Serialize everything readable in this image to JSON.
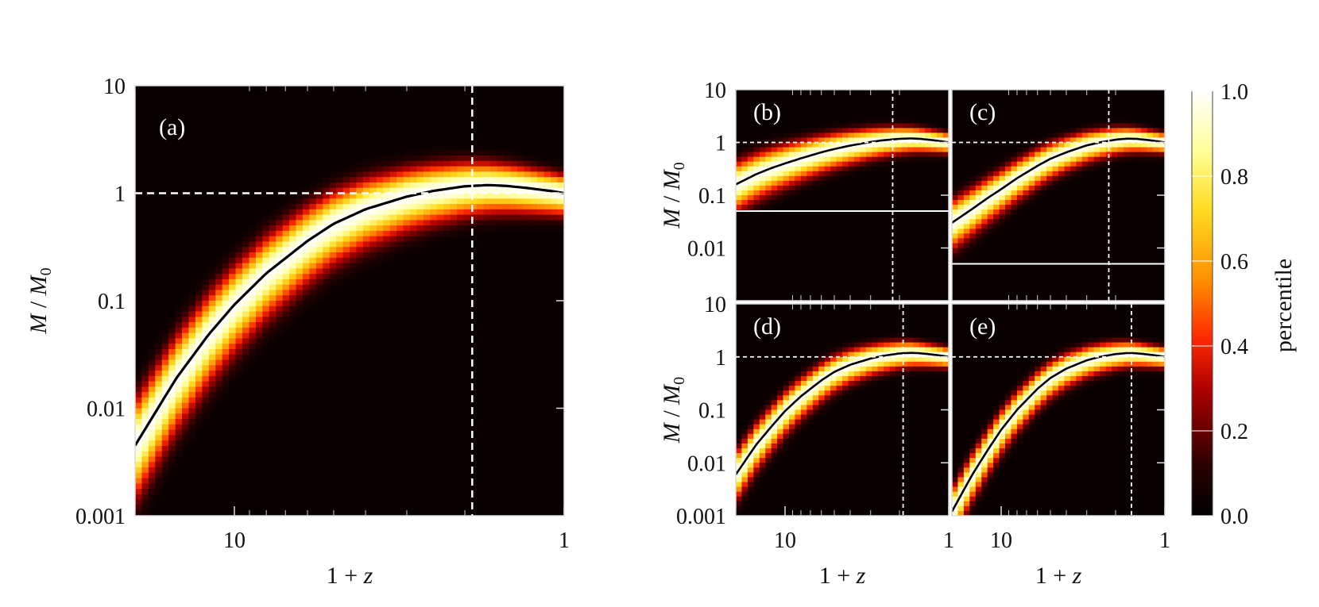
{
  "figure": {
    "colorbar": {
      "label": "percentile",
      "range": [
        0.0,
        1.0
      ],
      "ticks": [
        "0.0",
        "0.2",
        "0.4",
        "0.6",
        "0.8",
        "1.0"
      ],
      "colormap": [
        "#000000",
        "#3a0000",
        "#8b0000",
        "#e00000",
        "#ff6a00",
        "#ffd000",
        "#ffffa0",
        "#ffffff"
      ]
    },
    "axis_text": {
      "xlabel_prefix": "1 + ",
      "xlabel_var": "z",
      "ylabel_var": "M",
      "ylabel_sep": " / ",
      "ylabel_den": "M",
      "ylabel_sub": "0"
    },
    "reference_line_y": 1,
    "background_color": "#0a0000",
    "curve_color": "#000000",
    "guide_color": "#ffffff"
  },
  "chart_data": [
    {
      "type": "heatmap",
      "panel": "(a)",
      "xlabel": "1 + z",
      "ylabel": "M / M0",
      "x_scale": "log",
      "x_direction": "decreasing",
      "xlim": [
        20,
        1
      ],
      "y_scale": "log",
      "ylim": [
        0.001,
        10
      ],
      "xticks": [
        {
          "value": 10,
          "label": "10"
        },
        {
          "value": 1,
          "label": "1"
        }
      ],
      "yticks": [
        {
          "value": 10,
          "label": "10"
        },
        {
          "value": 1,
          "label": "1"
        },
        {
          "value": 0.1,
          "label": "0.1"
        },
        {
          "value": 0.01,
          "label": "0.01"
        },
        {
          "value": 0.001,
          "label": "0.001"
        }
      ],
      "median_curve": {
        "x": [
          20,
          15,
          12,
          10,
          8,
          6,
          5,
          4,
          3,
          2.5,
          2,
          1.7,
          1.5,
          1.3,
          1.1,
          1.0
        ],
        "y": [
          0.0045,
          0.019,
          0.048,
          0.092,
          0.18,
          0.36,
          0.52,
          0.71,
          0.93,
          1.05,
          1.16,
          1.19,
          1.17,
          1.12,
          1.05,
          1.0
        ]
      },
      "spread_dex": 0.3,
      "vertical_line_x": 1.9,
      "horizontal_line_y": 1
    },
    {
      "type": "heatmap",
      "panel": "(b)",
      "xlabel": "",
      "ylabel": "M / M0",
      "x_scale": "log",
      "x_direction": "decreasing",
      "xlim": [
        20,
        1
      ],
      "y_scale": "log",
      "ylim": [
        0.001,
        10
      ],
      "xticks": [],
      "yticks": [
        {
          "value": 10,
          "label": "10"
        },
        {
          "value": 1,
          "label": "1"
        },
        {
          "value": 0.1,
          "label": "0.1"
        },
        {
          "value": 0.01,
          "label": "0.01"
        }
      ],
      "median_curve": {
        "x": [
          20,
          15,
          12,
          10,
          8,
          6,
          5,
          4,
          3,
          2.5,
          2,
          1.7,
          1.5,
          1.3,
          1.1,
          1.0
        ],
        "y": [
          0.16,
          0.25,
          0.33,
          0.4,
          0.5,
          0.65,
          0.75,
          0.87,
          1.02,
          1.1,
          1.17,
          1.19,
          1.17,
          1.12,
          1.05,
          1.0
        ]
      },
      "spread_dex": 0.3,
      "vertical_line_x": 2.2,
      "horizontal_line_y": 1,
      "lower_limit_y": 0.05
    },
    {
      "type": "heatmap",
      "panel": "(c)",
      "xlabel": "",
      "ylabel": "",
      "x_scale": "log",
      "x_direction": "decreasing",
      "xlim": [
        20,
        1
      ],
      "y_scale": "log",
      "ylim": [
        0.001,
        10
      ],
      "xticks": [],
      "yticks": [],
      "median_curve": {
        "x": [
          20,
          15,
          12,
          10,
          8,
          6,
          5,
          4,
          3,
          2.5,
          2,
          1.7,
          1.5,
          1.3,
          1.1,
          1.0
        ],
        "y": [
          0.03,
          0.055,
          0.09,
          0.13,
          0.21,
          0.36,
          0.49,
          0.65,
          0.88,
          1.0,
          1.13,
          1.18,
          1.17,
          1.12,
          1.05,
          1.0
        ]
      },
      "spread_dex": 0.3,
      "vertical_line_x": 2.2,
      "horizontal_line_y": 1,
      "lower_limit_y": 0.005
    },
    {
      "type": "heatmap",
      "panel": "(d)",
      "xlabel": "1 + z",
      "ylabel": "M / M0",
      "x_scale": "log",
      "x_direction": "decreasing",
      "xlim": [
        20,
        1
      ],
      "y_scale": "log",
      "ylim": [
        0.001,
        10
      ],
      "xticks": [
        {
          "value": 10,
          "label": "10"
        },
        {
          "value": 1,
          "label": "1"
        }
      ],
      "yticks": [
        {
          "value": 10,
          "label": "10"
        },
        {
          "value": 1,
          "label": "1"
        },
        {
          "value": 0.1,
          "label": "0.1"
        },
        {
          "value": 0.01,
          "label": "0.01"
        },
        {
          "value": 0.001,
          "label": "0.001"
        }
      ],
      "median_curve": {
        "x": [
          20,
          15,
          12,
          10,
          8,
          6,
          5,
          4,
          3,
          2.5,
          2,
          1.7,
          1.5,
          1.3,
          1.1,
          1.0
        ],
        "y": [
          0.006,
          0.022,
          0.05,
          0.095,
          0.18,
          0.36,
          0.52,
          0.71,
          0.93,
          1.05,
          1.16,
          1.19,
          1.17,
          1.12,
          1.05,
          1.0
        ]
      },
      "spread_dex": 0.3,
      "vertical_line_x": 1.9,
      "horizontal_line_y": 1
    },
    {
      "type": "heatmap",
      "panel": "(e)",
      "xlabel": "1 + z",
      "ylabel": "",
      "x_scale": "log",
      "x_direction": "decreasing",
      "xlim": [
        20,
        1
      ],
      "y_scale": "log",
      "ylim": [
        0.001,
        10
      ],
      "xticks": [
        {
          "value": 10,
          "label": "10"
        },
        {
          "value": 1,
          "label": "1"
        }
      ],
      "yticks": [],
      "median_curve": {
        "x": [
          20,
          15,
          12,
          10,
          8,
          6,
          5,
          4,
          3,
          2.5,
          2,
          1.7,
          1.5,
          1.3,
          1.1,
          1.0
        ],
        "y": [
          0.0012,
          0.006,
          0.018,
          0.042,
          0.1,
          0.25,
          0.4,
          0.6,
          0.86,
          1.0,
          1.13,
          1.18,
          1.17,
          1.12,
          1.05,
          1.0
        ]
      },
      "spread_dex": 0.3,
      "vertical_line_x": 1.6,
      "horizontal_line_y": 1
    }
  ]
}
